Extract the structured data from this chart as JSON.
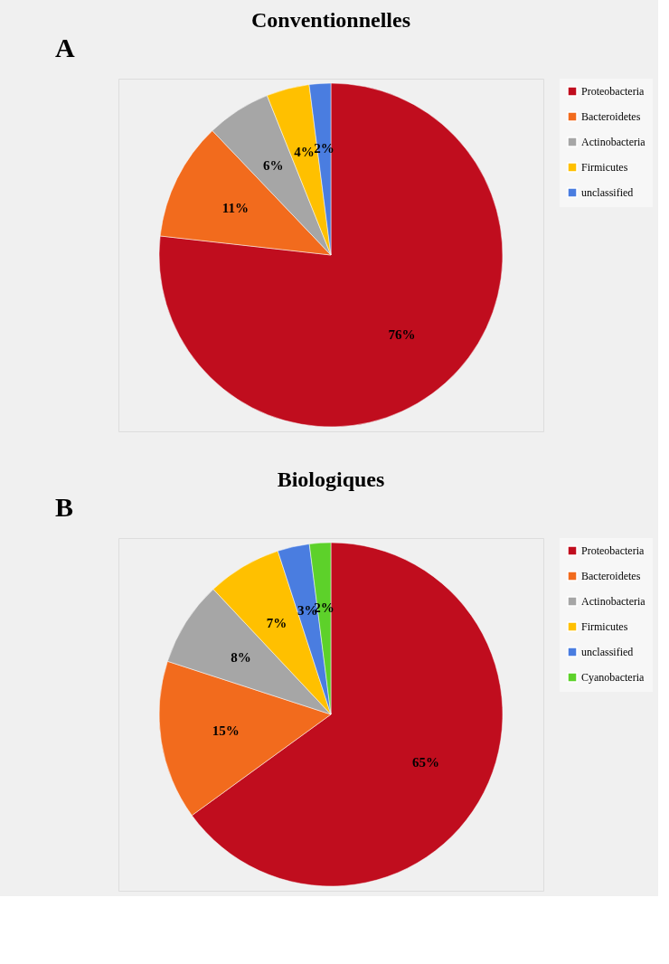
{
  "chart_data": [
    {
      "type": "pie",
      "title": "Conventionnelles",
      "annotations": [
        "A"
      ],
      "legend": "right",
      "categories": [
        "Proteobacteria",
        "Bacteroidetes",
        "Actinobacteria",
        "Firmicutes",
        "unclassified"
      ],
      "values": [
        76,
        11,
        6,
        4,
        2
      ],
      "value_labels": [
        "76%",
        "11%",
        "6%",
        "4%",
        "2%"
      ],
      "colors": [
        "#c00d1e",
        "#f26b1d",
        "#a6a6a6",
        "#ffc000",
        "#4a7de0"
      ]
    },
    {
      "type": "pie",
      "title": "Biologiques",
      "annotations": [
        "B"
      ],
      "legend": "right",
      "categories": [
        "Proteobacteria",
        "Bacteroidetes",
        "Actinobacteria",
        "Firmicutes",
        "unclassified",
        "Cyanobacteria"
      ],
      "values": [
        65,
        15,
        8,
        7,
        3,
        2
      ],
      "value_labels": [
        "65%",
        "15%",
        "8%",
        "7%",
        "3%",
        "2%"
      ],
      "colors": [
        "#c00d1e",
        "#f26b1d",
        "#a6a6a6",
        "#ffc000",
        "#4a7de0",
        "#5dd12a"
      ]
    }
  ]
}
